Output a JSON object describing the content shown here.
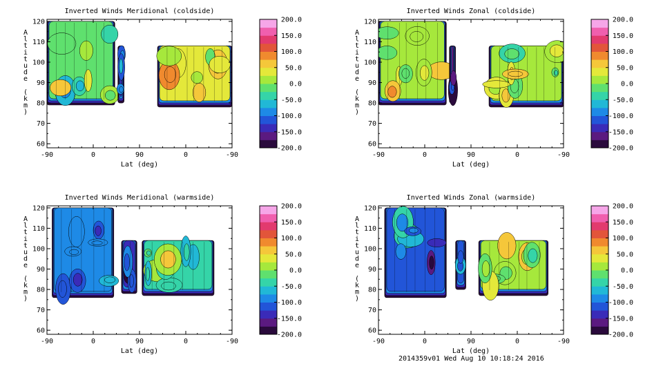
{
  "colors": {
    "scale": [
      "#2a0a3c",
      "#5b1a80",
      "#3a2bb8",
      "#2255d8",
      "#1e8ae6",
      "#21b8d6",
      "#35d4a8",
      "#5fe06e",
      "#a6e83c",
      "#e4e83a",
      "#f5c73a",
      "#f08a2e",
      "#e2553a",
      "#e23a6e",
      "#f05fae",
      "#f6a6e8"
    ],
    "contour": "#000000"
  },
  "footer": {
    "text": "2014359v01 Wed Aug 10 10:18:24 2016"
  },
  "chart_data": [
    {
      "type": "heatmap",
      "title": "Inverted Winds Meridional (coldside)",
      "xlabel": "Lat (deg)",
      "ylabel": "Altitude (km)",
      "xticks": [
        "-90",
        "0",
        "90",
        "0",
        "-90"
      ],
      "yticks": [
        "60",
        "70",
        "80",
        "90",
        "100",
        "110",
        "120"
      ],
      "ylim": [
        58,
        121
      ],
      "colorbar": {
        "ticks": [
          "200.0",
          "150.0",
          "100.0",
          "50.0",
          "0.0",
          "-50.0",
          "-100.0",
          "-150.0",
          "-200.0"
        ],
        "range": [
          -200,
          200
        ]
      },
      "data_regions": [
        {
          "x_range": [
            -90,
            42
          ],
          "alt_range": [
            79,
            120
          ],
          "mean_wind": -10
        },
        {
          "x_range": [
            48,
            60
          ],
          "alt_range": [
            80,
            108
          ],
          "mean_wind": -150
        },
        {
          "x_range": [
            125,
            270
          ],
          "alt_range": [
            78,
            108
          ],
          "mean_wind": 40
        }
      ]
    },
    {
      "type": "heatmap",
      "title": "Inverted Winds Zonal (coldside)",
      "xlabel": "Lat (deg)",
      "ylabel": "Altitude (km)",
      "xticks": [
        "-90",
        "0",
        "90",
        "0",
        "-90"
      ],
      "yticks": [
        "60",
        "70",
        "80",
        "90",
        "100",
        "110",
        "120"
      ],
      "ylim": [
        58,
        121
      ],
      "colorbar": {
        "ticks": [
          "200.0",
          "150.0",
          "100.0",
          "50.0",
          "0.0",
          "-50.0",
          "-100.0",
          "-150.0",
          "-200.0"
        ],
        "range": [
          -200,
          200
        ]
      },
      "data_regions": [
        {
          "x_range": [
            -90,
            42
          ],
          "alt_range": [
            79,
            120
          ],
          "mean_wind": 10
        },
        {
          "x_range": [
            48,
            60
          ],
          "alt_range": [
            80,
            108
          ],
          "mean_wind": -180
        },
        {
          "x_range": [
            125,
            270
          ],
          "alt_range": [
            78,
            108
          ],
          "mean_wind": 20
        }
      ]
    },
    {
      "type": "heatmap",
      "title": "Inverted Winds Meridional (warmside)",
      "xlabel": "Lat (deg)",
      "ylabel": "Altitude (km)",
      "xticks": [
        "-90",
        "0",
        "90",
        "0",
        "-90"
      ],
      "yticks": [
        "60",
        "70",
        "80",
        "90",
        "100",
        "110",
        "120"
      ],
      "ylim": [
        58,
        121
      ],
      "colorbar": {
        "ticks": [
          "200.0",
          "150.0",
          "100.0",
          "50.0",
          "0.0",
          "-50.0",
          "-100.0",
          "-150.0",
          "-200.0"
        ],
        "range": [
          -200,
          200
        ]
      },
      "data_regions": [
        {
          "x_range": [
            -80,
            40
          ],
          "alt_range": [
            76,
            120
          ],
          "mean_wind": -90
        },
        {
          "x_range": [
            55,
            85
          ],
          "alt_range": [
            78,
            104
          ],
          "mean_wind": -140
        },
        {
          "x_range": [
            95,
            235
          ],
          "alt_range": [
            77,
            104
          ],
          "mean_wind": -40
        }
      ]
    },
    {
      "type": "heatmap",
      "title": "Inverted Winds Zonal (warmside)",
      "xlabel": "Lat (deg)",
      "ylabel": "Altitude (km)",
      "xticks": [
        "-90",
        "0",
        "90",
        "0",
        "-90"
      ],
      "yticks": [
        "60",
        "70",
        "80",
        "90",
        "100",
        "110",
        "120"
      ],
      "ylim": [
        58,
        121
      ],
      "colorbar": {
        "ticks": [
          "200.0",
          "150.0",
          "100.0",
          "50.0",
          "0.0",
          "-50.0",
          "-100.0",
          "-150.0",
          "-200.0"
        ],
        "range": [
          -200,
          200
        ]
      },
      "data_regions": [
        {
          "x_range": [
            -78,
            42
          ],
          "alt_range": [
            76,
            120
          ],
          "mean_wind": -110
        },
        {
          "x_range": [
            60,
            80
          ],
          "alt_range": [
            80,
            104
          ],
          "mean_wind": -130
        },
        {
          "x_range": [
            105,
            240
          ],
          "alt_range": [
            77,
            104
          ],
          "mean_wind": 20
        }
      ]
    }
  ]
}
